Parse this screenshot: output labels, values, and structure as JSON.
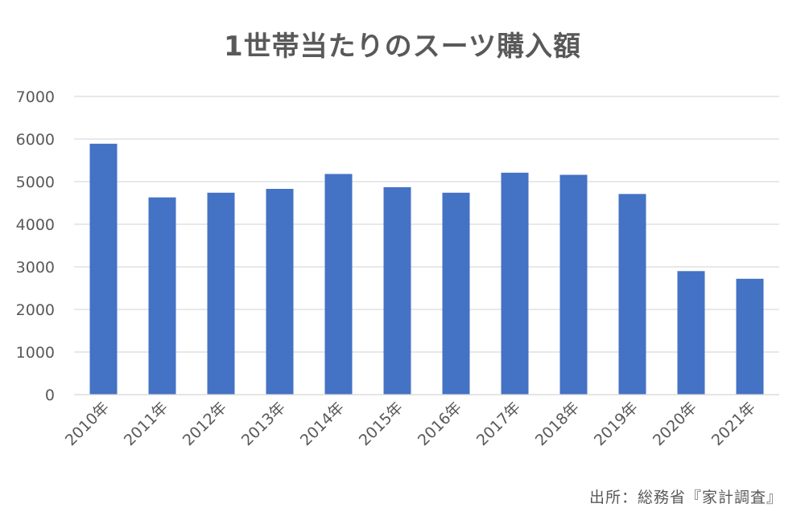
{
  "chart_data": {
    "type": "bar",
    "title": "1世帯当たりのスーツ購入額",
    "xlabel": "",
    "ylabel": "",
    "categories": [
      "2010年",
      "2011年",
      "2012年",
      "2013年",
      "2014年",
      "2015年",
      "2016年",
      "2017年",
      "2018年",
      "2019年",
      "2020年",
      "2021年"
    ],
    "values": [
      5890,
      4630,
      4740,
      4830,
      5180,
      4870,
      4740,
      5210,
      5160,
      4710,
      2900,
      2720
    ],
    "ylim": [
      0,
      7000
    ],
    "yticks": [
      0,
      1000,
      2000,
      3000,
      4000,
      5000,
      6000,
      7000
    ],
    "grid": true,
    "legend": "none",
    "bar_color": "#4472C4",
    "grid_color": "#D9D9D9"
  },
  "source_note": "出所：総務省『家計調査』"
}
